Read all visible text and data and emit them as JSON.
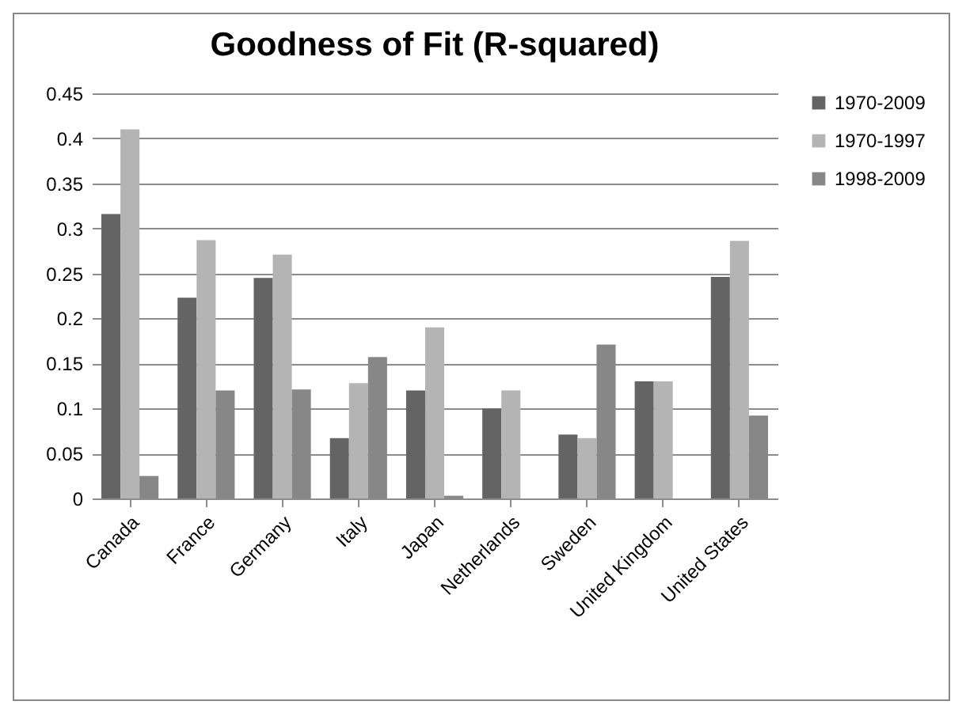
{
  "chart_data": {
    "type": "bar",
    "title": "Goodness of Fit (R-squared)",
    "categories": [
      "Canada",
      "France",
      "Germany",
      "Italy",
      "Japan",
      "Netherlands",
      "Sweden",
      "United Kingdom",
      "United States"
    ],
    "series": [
      {
        "name": "1970-2009",
        "color": "#646464",
        "values": [
          0.316,
          0.223,
          0.245,
          0.067,
          0.12,
          0.1,
          0.071,
          0.13,
          0.246
        ]
      },
      {
        "name": "1970-1997",
        "color": "#b4b4b4",
        "values": [
          0.41,
          0.287,
          0.271,
          0.128,
          0.19,
          0.12,
          0.067,
          0.13,
          0.286
        ]
      },
      {
        "name": "1998-2009",
        "color": "#878787",
        "values": [
          0.025,
          0.12,
          0.121,
          0.157,
          0.003,
          null,
          0.171,
          null,
          0.092
        ]
      }
    ],
    "ylim": [
      0,
      0.45
    ],
    "yticks": [
      0,
      0.05,
      0.1,
      0.15,
      0.2,
      0.25,
      0.3,
      0.35,
      0.4,
      0.45
    ],
    "grid": "y",
    "legend": "right"
  }
}
